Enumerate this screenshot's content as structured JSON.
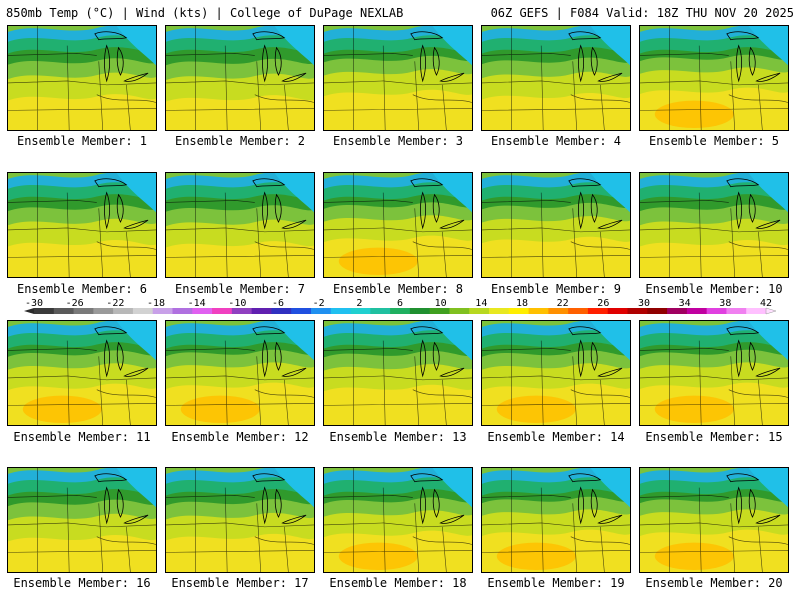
{
  "header": {
    "left": "850mb Temp (°C) | Wind (kts) | College of DuPage NEXLAB",
    "right": "06Z GEFS | F084 Valid: 18Z THU NOV 20 2025"
  },
  "members": [
    {
      "label": "Ensemble Member: 1",
      "warmth": 0.55
    },
    {
      "label": "Ensemble Member: 2",
      "warmth": 0.5
    },
    {
      "label": "Ensemble Member: 3",
      "warmth": 0.75
    },
    {
      "label": "Ensemble Member: 4",
      "warmth": 0.6
    },
    {
      "label": "Ensemble Member: 5",
      "warmth": 0.85
    },
    {
      "label": "Ensemble Member: 6",
      "warmth": 0.6
    },
    {
      "label": "Ensemble Member: 7",
      "warmth": 0.55
    },
    {
      "label": "Ensemble Member: 8",
      "warmth": 0.8
    },
    {
      "label": "Ensemble Member: 9",
      "warmth": 0.75
    },
    {
      "label": "Ensemble Member: 10",
      "warmth": 0.6
    },
    {
      "label": "Ensemble Member: 11",
      "warmth": 0.8
    },
    {
      "label": "Ensemble Member: 12",
      "warmth": 0.85
    },
    {
      "label": "Ensemble Member: 13",
      "warmth": 0.75
    },
    {
      "label": "Ensemble Member: 14",
      "warmth": 0.8
    },
    {
      "label": "Ensemble Member: 15",
      "warmth": 0.85
    },
    {
      "label": "Ensemble Member: 16",
      "warmth": 0.6
    },
    {
      "label": "Ensemble Member: 17",
      "warmth": 0.65
    },
    {
      "label": "Ensemble Member: 18",
      "warmth": 0.8
    },
    {
      "label": "Ensemble Member: 19",
      "warmth": 0.85
    },
    {
      "label": "Ensemble Member: 20",
      "warmth": 0.85
    }
  ],
  "colorbar": {
    "ticks": [
      "-30",
      "-26",
      "-22",
      "-18",
      "-14",
      "-10",
      "-6",
      "-2",
      "2",
      "6",
      "10",
      "14",
      "18",
      "22",
      "26",
      "30",
      "34",
      "38",
      "42"
    ],
    "colors": [
      "#3a3a3a",
      "#5a5a5a",
      "#7a7a7a",
      "#9a9a9a",
      "#b8b8b8",
      "#d2d2d2",
      "#c8a0e8",
      "#b070e0",
      "#e060f0",
      "#f040c0",
      "#9040c0",
      "#6020b0",
      "#3030c0",
      "#2050e0",
      "#2090f0",
      "#20c0f0",
      "#20d0d0",
      "#20c0a0",
      "#20b060",
      "#209030",
      "#40a020",
      "#80c020",
      "#b8d820",
      "#e8e820",
      "#ffee00",
      "#ffc000",
      "#ff9000",
      "#ff6000",
      "#ff2000",
      "#e00000",
      "#b00000",
      "#900000",
      "#a00060",
      "#c000a0",
      "#e040e0",
      "#f080f0",
      "#ffc0ff"
    ]
  }
}
